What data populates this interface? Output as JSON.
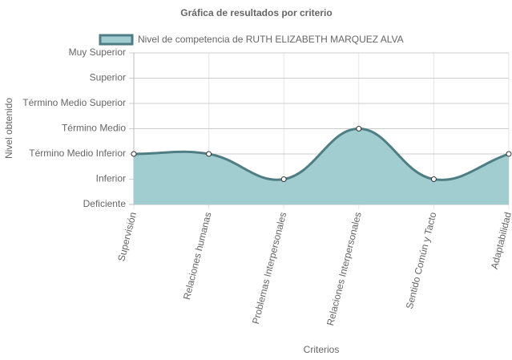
{
  "chart_data": {
    "type": "line",
    "title": "Gráfica de resultados por criterio",
    "x_label": "Criterios",
    "y_label": "Nivel obtenido",
    "categories": [
      "Supervisión",
      "Relaciones humanas",
      "Problemas Interpersonales",
      "Relaciones Interpersonales",
      "Sentido Común y Tacto",
      "Adaptabilidad"
    ],
    "series": [
      {
        "name": "Nivel de competencia de RUTH ELIZABETH MARQUEZ ALVA",
        "color": "#4e7d83",
        "fill_color": "#a2cdd0",
        "values": [
          2,
          2,
          1,
          3,
          1,
          2
        ]
      }
    ],
    "ylim": [
      0,
      6
    ],
    "yticks": [
      {
        "value": 0,
        "label": "Deficiente"
      },
      {
        "value": 1,
        "label": "Inferior"
      },
      {
        "value": 2,
        "label": "Término Medio Inferior"
      },
      {
        "value": 3,
        "label": "Término Medio"
      },
      {
        "value": 4,
        "label": "Término Medio Superior"
      },
      {
        "value": 5,
        "label": "Superior"
      },
      {
        "value": 6,
        "label": "Muy Superior"
      }
    ],
    "grid": true
  }
}
